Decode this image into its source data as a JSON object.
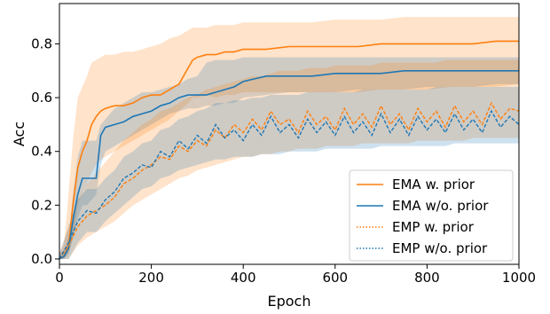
{
  "chart_data": {
    "type": "line",
    "title": "",
    "xlabel": "Epoch",
    "ylabel": "Acc",
    "xlim": [
      0,
      1000
    ],
    "ylim": [
      -0.02,
      0.95
    ],
    "xticks": [
      "0",
      "200",
      "400",
      "600",
      "800",
      "1000"
    ],
    "yticks": [
      "0.0",
      "0.2",
      "0.4",
      "0.6",
      "0.8"
    ],
    "grid": false,
    "legend_position": "lower-right",
    "colors": {
      "orange": "#ff7f0e",
      "blue": "#1f77b4"
    },
    "series": [
      {
        "name": "EMA w. prior",
        "color": "#ff7f0e",
        "linestyle": "solid",
        "x": [
          0,
          10,
          20,
          30,
          40,
          50,
          60,
          70,
          80,
          90,
          100,
          120,
          140,
          160,
          180,
          200,
          220,
          240,
          260,
          280,
          290,
          300,
          320,
          340,
          360,
          380,
          400,
          450,
          500,
          550,
          600,
          650,
          700,
          750,
          800,
          850,
          900,
          950,
          1000
        ],
        "y": [
          0.0,
          0.01,
          0.05,
          0.21,
          0.34,
          0.4,
          0.44,
          0.5,
          0.53,
          0.55,
          0.56,
          0.57,
          0.57,
          0.58,
          0.6,
          0.61,
          0.61,
          0.63,
          0.65,
          0.71,
          0.74,
          0.75,
          0.76,
          0.76,
          0.77,
          0.77,
          0.78,
          0.78,
          0.79,
          0.79,
          0.79,
          0.79,
          0.8,
          0.8,
          0.8,
          0.8,
          0.8,
          0.81,
          0.81
        ],
        "band_lower": [
          0.0,
          0.0,
          0.02,
          0.08,
          0.2,
          0.25,
          0.28,
          0.32,
          0.35,
          0.37,
          0.38,
          0.4,
          0.42,
          0.44,
          0.46,
          0.48,
          0.5,
          0.52,
          0.55,
          0.58,
          0.6,
          0.6,
          0.61,
          0.6,
          0.61,
          0.61,
          0.62,
          0.62,
          0.62,
          0.62,
          0.62,
          0.62,
          0.63,
          0.63,
          0.63,
          0.64,
          0.64,
          0.64,
          0.65
        ],
        "band_upper": [
          0.02,
          0.05,
          0.25,
          0.45,
          0.6,
          0.64,
          0.68,
          0.73,
          0.74,
          0.75,
          0.76,
          0.76,
          0.77,
          0.77,
          0.78,
          0.79,
          0.8,
          0.82,
          0.83,
          0.85,
          0.86,
          0.86,
          0.86,
          0.87,
          0.87,
          0.87,
          0.88,
          0.88,
          0.88,
          0.88,
          0.89,
          0.89,
          0.89,
          0.9,
          0.9,
          0.9,
          0.9,
          0.9,
          0.9
        ]
      },
      {
        "name": "EMA w/o. prior",
        "color": "#1f77b4",
        "linestyle": "solid",
        "x": [
          0,
          10,
          20,
          30,
          40,
          50,
          60,
          70,
          80,
          90,
          100,
          120,
          140,
          160,
          180,
          200,
          220,
          240,
          260,
          280,
          300,
          320,
          340,
          360,
          380,
          400,
          450,
          500,
          550,
          600,
          650,
          700,
          750,
          800,
          850,
          900,
          950,
          1000
        ],
        "y": [
          0.0,
          0.01,
          0.04,
          0.15,
          0.24,
          0.3,
          0.3,
          0.3,
          0.3,
          0.46,
          0.49,
          0.5,
          0.51,
          0.53,
          0.54,
          0.55,
          0.57,
          0.58,
          0.6,
          0.61,
          0.61,
          0.61,
          0.62,
          0.63,
          0.64,
          0.66,
          0.68,
          0.68,
          0.68,
          0.69,
          0.69,
          0.69,
          0.7,
          0.7,
          0.7,
          0.7,
          0.7,
          0.7
        ],
        "band_lower": [
          0.0,
          0.0,
          0.02,
          0.08,
          0.15,
          0.2,
          0.2,
          0.22,
          0.24,
          0.35,
          0.4,
          0.42,
          0.44,
          0.46,
          0.48,
          0.5,
          0.52,
          0.54,
          0.55,
          0.56,
          0.56,
          0.57,
          0.57,
          0.58,
          0.58,
          0.6,
          0.61,
          0.62,
          0.62,
          0.62,
          0.63,
          0.63,
          0.63,
          0.64,
          0.64,
          0.64,
          0.65,
          0.65
        ],
        "band_upper": [
          0.02,
          0.03,
          0.08,
          0.25,
          0.38,
          0.44,
          0.44,
          0.44,
          0.44,
          0.5,
          0.52,
          0.56,
          0.58,
          0.6,
          0.62,
          0.62,
          0.63,
          0.64,
          0.65,
          0.67,
          0.68,
          0.73,
          0.74,
          0.74,
          0.74,
          0.75,
          0.75,
          0.75,
          0.75,
          0.75,
          0.75,
          0.75,
          0.75,
          0.75,
          0.75,
          0.75,
          0.75,
          0.75
        ]
      },
      {
        "name": "EMP w. prior",
        "color": "#ff7f0e",
        "linestyle": "dotted",
        "x": [
          0,
          20,
          40,
          60,
          80,
          100,
          120,
          140,
          160,
          180,
          200,
          220,
          240,
          260,
          280,
          300,
          320,
          340,
          360,
          380,
          400,
          420,
          440,
          460,
          480,
          500,
          520,
          540,
          560,
          580,
          600,
          620,
          640,
          660,
          680,
          700,
          720,
          740,
          760,
          780,
          800,
          820,
          840,
          860,
          880,
          900,
          920,
          940,
          960,
          980,
          1000
        ],
        "y": [
          0.0,
          0.05,
          0.12,
          0.16,
          0.18,
          0.2,
          0.23,
          0.28,
          0.3,
          0.33,
          0.35,
          0.38,
          0.37,
          0.42,
          0.4,
          0.44,
          0.42,
          0.48,
          0.45,
          0.5,
          0.47,
          0.52,
          0.48,
          0.55,
          0.5,
          0.52,
          0.47,
          0.55,
          0.5,
          0.53,
          0.48,
          0.56,
          0.5,
          0.54,
          0.49,
          0.57,
          0.5,
          0.54,
          0.48,
          0.56,
          0.51,
          0.55,
          0.49,
          0.57,
          0.51,
          0.55,
          0.5,
          0.58,
          0.52,
          0.56,
          0.55
        ],
        "band_lower": [
          0.0,
          0.0,
          0.05,
          0.08,
          0.1,
          0.12,
          0.14,
          0.17,
          0.2,
          0.22,
          0.24,
          0.26,
          0.28,
          0.3,
          0.31,
          0.33,
          0.34,
          0.35,
          0.36,
          0.37,
          0.38,
          0.38,
          0.39,
          0.39,
          0.4,
          0.4,
          0.41,
          0.41,
          0.41,
          0.42,
          0.42,
          0.42,
          0.42,
          0.43,
          0.43,
          0.43,
          0.43,
          0.43,
          0.43,
          0.44,
          0.44,
          0.44,
          0.44,
          0.44,
          0.44,
          0.45,
          0.45,
          0.45,
          0.45,
          0.45,
          0.45
        ],
        "band_upper": [
          0.02,
          0.12,
          0.22,
          0.28,
          0.32,
          0.36,
          0.4,
          0.44,
          0.47,
          0.5,
          0.52,
          0.55,
          0.56,
          0.58,
          0.6,
          0.61,
          0.63,
          0.64,
          0.65,
          0.66,
          0.67,
          0.68,
          0.68,
          0.69,
          0.7,
          0.7,
          0.7,
          0.71,
          0.71,
          0.71,
          0.72,
          0.72,
          0.72,
          0.72,
          0.72,
          0.73,
          0.73,
          0.73,
          0.73,
          0.73,
          0.73,
          0.73,
          0.74,
          0.74,
          0.74,
          0.74,
          0.74,
          0.74,
          0.74,
          0.74,
          0.74
        ]
      },
      {
        "name": "EMP w/o. prior",
        "color": "#1f77b4",
        "linestyle": "dotted",
        "x": [
          0,
          20,
          40,
          60,
          80,
          100,
          120,
          140,
          160,
          180,
          200,
          220,
          240,
          260,
          280,
          300,
          320,
          340,
          360,
          380,
          400,
          420,
          440,
          460,
          480,
          500,
          520,
          540,
          560,
          580,
          600,
          620,
          640,
          660,
          680,
          700,
          720,
          740,
          760,
          780,
          800,
          820,
          840,
          860,
          880,
          900,
          920,
          940,
          960,
          980,
          1000
        ],
        "y": [
          0.0,
          0.06,
          0.14,
          0.18,
          0.17,
          0.22,
          0.25,
          0.3,
          0.32,
          0.35,
          0.34,
          0.4,
          0.38,
          0.44,
          0.41,
          0.46,
          0.43,
          0.5,
          0.45,
          0.48,
          0.44,
          0.5,
          0.46,
          0.53,
          0.47,
          0.5,
          0.45,
          0.52,
          0.47,
          0.51,
          0.46,
          0.53,
          0.47,
          0.51,
          0.46,
          0.54,
          0.47,
          0.52,
          0.46,
          0.53,
          0.48,
          0.52,
          0.47,
          0.54,
          0.48,
          0.52,
          0.47,
          0.55,
          0.49,
          0.53,
          0.5
        ],
        "band_lower": [
          0.0,
          0.0,
          0.06,
          0.1,
          0.1,
          0.14,
          0.17,
          0.2,
          0.23,
          0.26,
          0.27,
          0.3,
          0.31,
          0.33,
          0.34,
          0.35,
          0.36,
          0.37,
          0.37,
          0.38,
          0.38,
          0.38,
          0.39,
          0.39,
          0.39,
          0.4,
          0.4,
          0.4,
          0.4,
          0.41,
          0.41,
          0.41,
          0.41,
          0.41,
          0.41,
          0.42,
          0.42,
          0.42,
          0.42,
          0.42,
          0.42,
          0.42,
          0.42,
          0.43,
          0.43,
          0.43,
          0.43,
          0.43,
          0.43,
          0.43,
          0.43
        ],
        "band_upper": [
          0.02,
          0.12,
          0.22,
          0.26,
          0.26,
          0.3,
          0.33,
          0.38,
          0.4,
          0.43,
          0.44,
          0.48,
          0.49,
          0.52,
          0.53,
          0.55,
          0.56,
          0.58,
          0.58,
          0.59,
          0.59,
          0.6,
          0.6,
          0.61,
          0.61,
          0.61,
          0.61,
          0.62,
          0.62,
          0.62,
          0.62,
          0.62,
          0.62,
          0.63,
          0.63,
          0.63,
          0.63,
          0.63,
          0.63,
          0.63,
          0.63,
          0.64,
          0.64,
          0.64,
          0.64,
          0.64,
          0.64,
          0.64,
          0.64,
          0.64,
          0.64
        ]
      }
    ]
  }
}
